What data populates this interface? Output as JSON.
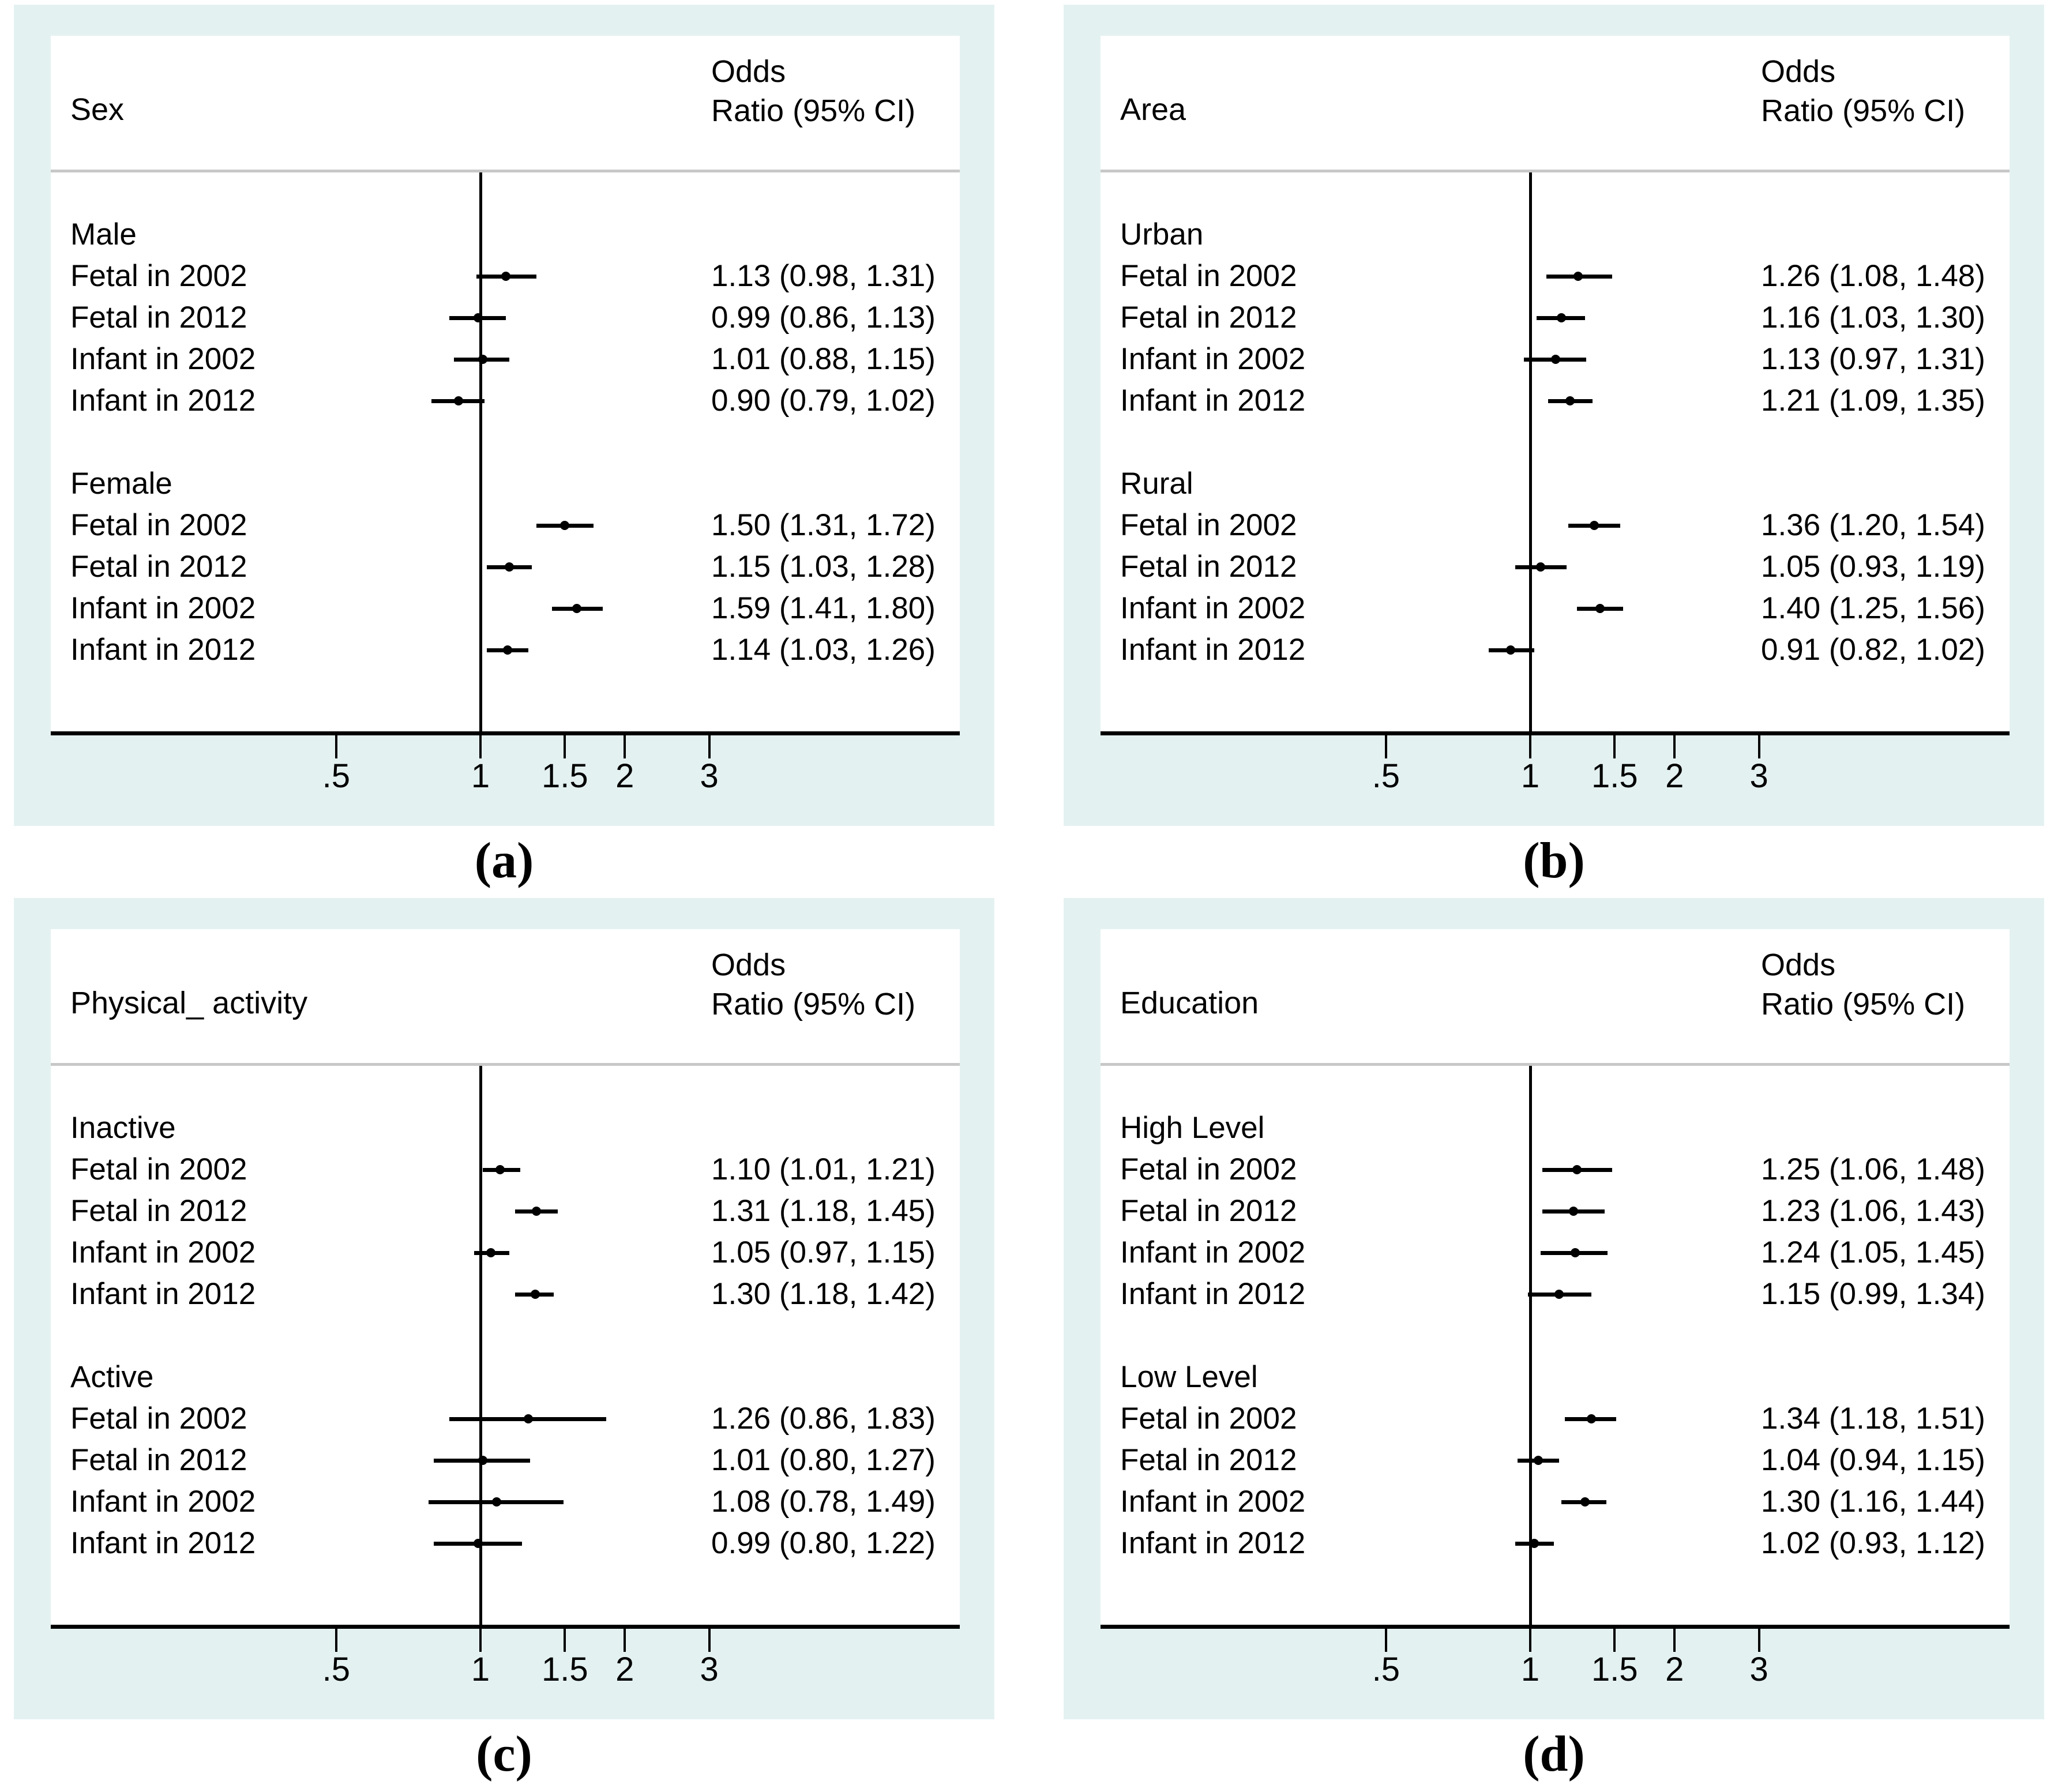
{
  "colors": {
    "panel_background": "#e4f1f1",
    "plot_background": "#ffffff",
    "divider_gray": "#c8c8c8",
    "line_black": "#000000",
    "text": "#000000"
  },
  "chart_data": {
    "type": "scatter",
    "variant": "forest-plot-grid",
    "xscale": "log",
    "ref_line": 1,
    "tick_values": [
      0.5,
      1,
      1.5,
      2,
      3
    ],
    "tick_labels": [
      ".5",
      "1",
      "1.5",
      "2",
      "3"
    ],
    "or_header_line1": "Odds",
    "or_header_line2": "Ratio (95% CI)",
    "panels": [
      {
        "caption": "(a)",
        "variable": "Sex",
        "groups": [
          {
            "label": "Male",
            "rows": [
              {
                "label": "Fetal in 2002",
                "or": 1.13,
                "lo": 0.98,
                "hi": 1.31,
                "display": "1.13 (0.98, 1.31)"
              },
              {
                "label": "Fetal in 2012",
                "or": 0.99,
                "lo": 0.86,
                "hi": 1.13,
                "display": "0.99 (0.86, 1.13)"
              },
              {
                "label": "Infant in 2002",
                "or": 1.01,
                "lo": 0.88,
                "hi": 1.15,
                "display": "1.01 (0.88, 1.15)"
              },
              {
                "label": "Infant in 2012",
                "or": 0.9,
                "lo": 0.79,
                "hi": 1.02,
                "display": "0.90 (0.79, 1.02)"
              }
            ]
          },
          {
            "label": "Female",
            "rows": [
              {
                "label": "Fetal in 2002",
                "or": 1.5,
                "lo": 1.31,
                "hi": 1.72,
                "display": "1.50 (1.31, 1.72)"
              },
              {
                "label": "Fetal in 2012",
                "or": 1.15,
                "lo": 1.03,
                "hi": 1.28,
                "display": "1.15 (1.03, 1.28)"
              },
              {
                "label": "Infant in 2002",
                "or": 1.59,
                "lo": 1.41,
                "hi": 1.8,
                "display": "1.59 (1.41, 1.80)"
              },
              {
                "label": "Infant in 2012",
                "or": 1.14,
                "lo": 1.03,
                "hi": 1.26,
                "display": "1.14 (1.03, 1.26)"
              }
            ]
          }
        ]
      },
      {
        "caption": "(b)",
        "variable": "Area",
        "groups": [
          {
            "label": "Urban",
            "rows": [
              {
                "label": "Fetal in 2002",
                "or": 1.26,
                "lo": 1.08,
                "hi": 1.48,
                "display": "1.26 (1.08, 1.48)"
              },
              {
                "label": "Fetal in 2012",
                "or": 1.16,
                "lo": 1.03,
                "hi": 1.3,
                "display": "1.16 (1.03, 1.30)"
              },
              {
                "label": "Infant in 2002",
                "or": 1.13,
                "lo": 0.97,
                "hi": 1.31,
                "display": "1.13 (0.97, 1.31)"
              },
              {
                "label": "Infant in 2012",
                "or": 1.21,
                "lo": 1.09,
                "hi": 1.35,
                "display": "1.21 (1.09, 1.35)"
              }
            ]
          },
          {
            "label": "Rural",
            "rows": [
              {
                "label": "Fetal in 2002",
                "or": 1.36,
                "lo": 1.2,
                "hi": 1.54,
                "display": "1.36 (1.20, 1.54)"
              },
              {
                "label": "Fetal in 2012",
                "or": 1.05,
                "lo": 0.93,
                "hi": 1.19,
                "display": "1.05 (0.93, 1.19)"
              },
              {
                "label": "Infant in 2002",
                "or": 1.4,
                "lo": 1.25,
                "hi": 1.56,
                "display": "1.40 (1.25, 1.56)"
              },
              {
                "label": "Infant in 2012",
                "or": 0.91,
                "lo": 0.82,
                "hi": 1.02,
                "display": "0.91 (0.82, 1.02)"
              }
            ]
          }
        ]
      },
      {
        "caption": "(c)",
        "variable": "Physical_ activity",
        "groups": [
          {
            "label": "Inactive",
            "rows": [
              {
                "label": "Fetal in 2002",
                "or": 1.1,
                "lo": 1.01,
                "hi": 1.21,
                "display": "1.10 (1.01, 1.21)"
              },
              {
                "label": "Fetal in 2012",
                "or": 1.31,
                "lo": 1.18,
                "hi": 1.45,
                "display": "1.31 (1.18, 1.45)"
              },
              {
                "label": "Infant in 2002",
                "or": 1.05,
                "lo": 0.97,
                "hi": 1.15,
                "display": "1.05 (0.97, 1.15)"
              },
              {
                "label": "Infant in 2012",
                "or": 1.3,
                "lo": 1.18,
                "hi": 1.42,
                "display": "1.30 (1.18, 1.42)"
              }
            ]
          },
          {
            "label": "Active",
            "rows": [
              {
                "label": "Fetal in 2002",
                "or": 1.26,
                "lo": 0.86,
                "hi": 1.83,
                "display": "1.26 (0.86, 1.83)"
              },
              {
                "label": "Fetal in 2012",
                "or": 1.01,
                "lo": 0.8,
                "hi": 1.27,
                "display": "1.01 (0.80, 1.27)"
              },
              {
                "label": "Infant in 2002",
                "or": 1.08,
                "lo": 0.78,
                "hi": 1.49,
                "display": "1.08 (0.78, 1.49)"
              },
              {
                "label": "Infant in 2012",
                "or": 0.99,
                "lo": 0.8,
                "hi": 1.22,
                "display": "0.99 (0.80, 1.22)"
              }
            ]
          }
        ]
      },
      {
        "caption": "(d)",
        "variable": "Education",
        "groups": [
          {
            "label": "High Level",
            "rows": [
              {
                "label": "Fetal in 2002",
                "or": 1.25,
                "lo": 1.06,
                "hi": 1.48,
                "display": "1.25 (1.06, 1.48)"
              },
              {
                "label": "Fetal in 2012",
                "or": 1.23,
                "lo": 1.06,
                "hi": 1.43,
                "display": "1.23 (1.06, 1.43)"
              },
              {
                "label": "Infant in 2002",
                "or": 1.24,
                "lo": 1.05,
                "hi": 1.45,
                "display": "1.24 (1.05, 1.45)"
              },
              {
                "label": "Infant in 2012",
                "or": 1.15,
                "lo": 0.99,
                "hi": 1.34,
                "display": "1.15 (0.99, 1.34)"
              }
            ]
          },
          {
            "label": "Low Level",
            "rows": [
              {
                "label": "Fetal in 2002",
                "or": 1.34,
                "lo": 1.18,
                "hi": 1.51,
                "display": "1.34 (1.18, 1.51)"
              },
              {
                "label": "Fetal in 2012",
                "or": 1.04,
                "lo": 0.94,
                "hi": 1.15,
                "display": "1.04 (0.94, 1.15)"
              },
              {
                "label": "Infant in 2002",
                "or": 1.3,
                "lo": 1.16,
                "hi": 1.44,
                "display": "1.30 (1.16, 1.44)"
              },
              {
                "label": "Infant in 2012",
                "or": 1.02,
                "lo": 0.93,
                "hi": 1.12,
                "display": "1.02 (0.93, 1.12)"
              }
            ]
          }
        ]
      }
    ]
  }
}
